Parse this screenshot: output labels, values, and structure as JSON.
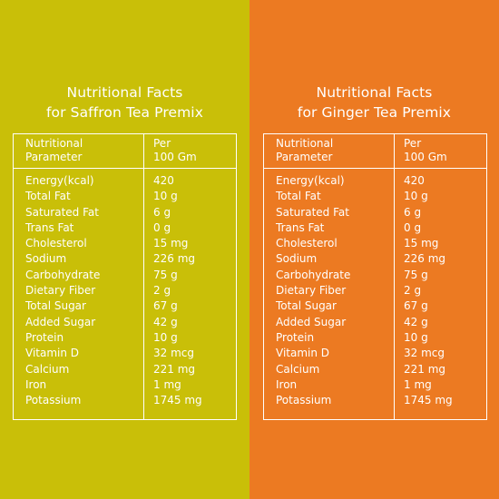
{
  "panels": [
    {
      "title_line1": "Nutritional Facts",
      "title_line2": "for Saffron Tea Premix",
      "header": {
        "param_line1": "Nutritional",
        "param_line2": "Parameter",
        "per_line1": "Per",
        "per_line2": "100 Gm"
      },
      "rows": [
        {
          "name": "Energy(kcal)",
          "value": "420"
        },
        {
          "name": "Total Fat",
          "value": "10 g"
        },
        {
          "name": "Saturated Fat",
          "value": "6 g"
        },
        {
          "name": "Trans Fat",
          "value": "0 g"
        },
        {
          "name": "Cholesterol",
          "value": "15 mg"
        },
        {
          "name": "Sodium",
          "value": "226 mg"
        },
        {
          "name": "Carbohydrate",
          "value": "75 g"
        },
        {
          "name": "Dietary Fiber",
          "value": "2 g"
        },
        {
          "name": "Total Sugar",
          "value": "67 g"
        },
        {
          "name": "Added Sugar",
          "value": "42 g"
        },
        {
          "name": "Protein",
          "value": "10 g"
        },
        {
          "name": "Vitamin D",
          "value": "32 mcg"
        },
        {
          "name": "Calcium",
          "value": "221 mg"
        },
        {
          "name": "Iron",
          "value": "1 mg"
        },
        {
          "name": "Potassium",
          "value": "1745 mg"
        }
      ]
    },
    {
      "title_line1": "Nutritional Facts",
      "title_line2": "for Ginger Tea Premix",
      "header": {
        "param_line1": "Nutritional",
        "param_line2": "Parameter",
        "per_line1": "Per",
        "per_line2": "100 Gm"
      },
      "rows": [
        {
          "name": "Energy(kcal)",
          "value": "420"
        },
        {
          "name": "Total Fat",
          "value": "10 g"
        },
        {
          "name": "Saturated Fat",
          "value": "6 g"
        },
        {
          "name": "Trans Fat",
          "value": "0 g"
        },
        {
          "name": "Cholesterol",
          "value": "15 mg"
        },
        {
          "name": "Sodium",
          "value": "226 mg"
        },
        {
          "name": "Carbohydrate",
          "value": "75 g"
        },
        {
          "name": "Dietary Fiber",
          "value": "2 g"
        },
        {
          "name": "Total Sugar",
          "value": "67 g"
        },
        {
          "name": "Added Sugar",
          "value": "42 g"
        },
        {
          "name": "Protein",
          "value": "10 g"
        },
        {
          "name": "Vitamin D",
          "value": "32 mcg"
        },
        {
          "name": "Calcium",
          "value": "221 mg"
        },
        {
          "name": "Iron",
          "value": "1 mg"
        },
        {
          "name": "Potassium",
          "value": "1745 mg"
        }
      ]
    }
  ],
  "colors": {
    "saffron_panel": "#c9bf08",
    "ginger_panel": "#ec7a22",
    "text": "#ffffff"
  }
}
